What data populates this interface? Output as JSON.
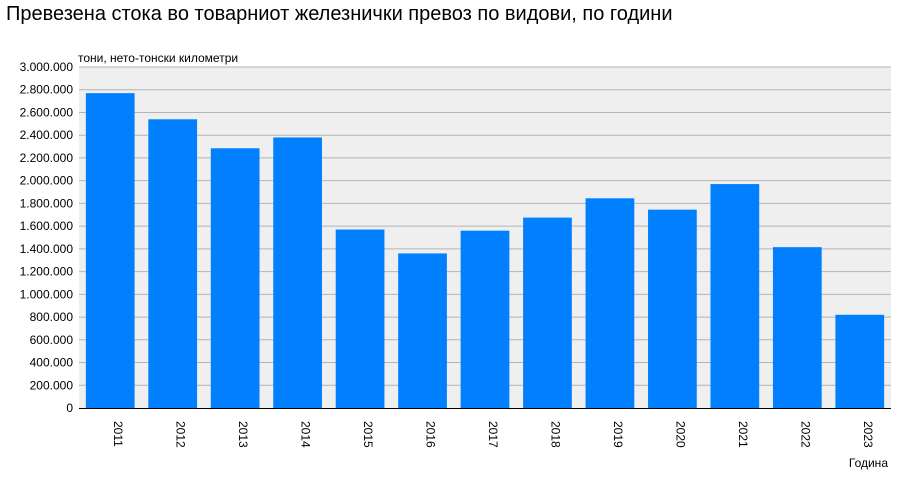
{
  "chart_data": {
    "type": "bar",
    "title": "Превезена стока во товарниот железнички превоз по видови, по години",
    "ylabel": "тони, нето-тонски километри",
    "xlabel": "Година",
    "categories": [
      "2011",
      "2012",
      "2013",
      "2014",
      "2015",
      "2016",
      "2017",
      "2018",
      "2019",
      "2020",
      "2021",
      "2022",
      "2023"
    ],
    "values": [
      2770000,
      2540000,
      2285000,
      2380000,
      1570000,
      1360000,
      1560000,
      1675000,
      1845000,
      1745000,
      1970000,
      1415000,
      820000
    ],
    "ylim": [
      0,
      3000000
    ],
    "yticks": [
      0,
      200000,
      400000,
      600000,
      800000,
      1000000,
      1200000,
      1400000,
      1600000,
      1800000,
      2000000,
      2200000,
      2400000,
      2600000,
      2800000,
      3000000
    ],
    "ytick_labels": [
      "0",
      "200.000",
      "400.000",
      "600.000",
      "800.000",
      "1.000.000",
      "1.200.000",
      "1.400.000",
      "1.600.000",
      "1.800.000",
      "2.000.000",
      "2.200.000",
      "2.400.000",
      "2.600.000",
      "2.800.000",
      "3.000.000"
    ],
    "grid": true,
    "colors": {
      "bar": "#0080ff",
      "plot_bg": "#efefef",
      "grid": "#b4b4b4"
    }
  }
}
